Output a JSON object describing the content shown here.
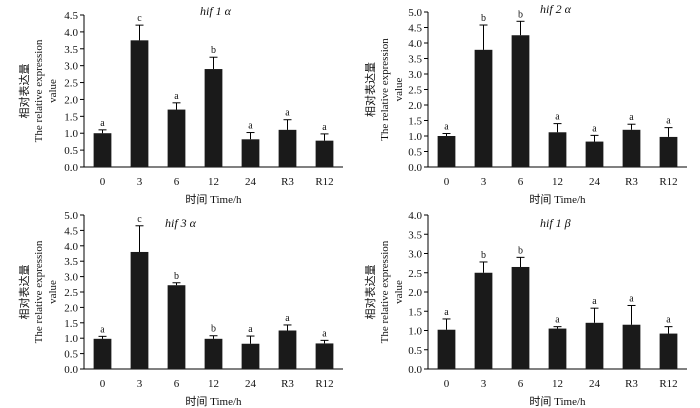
{
  "chart_data": [
    {
      "type": "bar",
      "title": "hif 1 α",
      "categories": [
        "0",
        "3",
        "6",
        "12",
        "24",
        "R3",
        "R12"
      ],
      "values": [
        1.0,
        3.75,
        1.7,
        2.9,
        0.82,
        1.1,
        0.78
      ],
      "errors": [
        0.1,
        0.45,
        0.2,
        0.35,
        0.2,
        0.3,
        0.2
      ],
      "sig_labels": [
        "a",
        "c",
        "a",
        "b",
        "a",
        "a",
        "a"
      ],
      "ylim": [
        0,
        4.5
      ],
      "yticks": [
        "0.0",
        "0.5",
        "1.0",
        "1.5",
        "2.0",
        "2.5",
        "3.0",
        "3.5",
        "4.0",
        "4.5"
      ],
      "ylabel_cn": "相对表达量",
      "ylabel_en1": "The relative expression",
      "ylabel_en2": "value",
      "xlabel": "时间 Time/h"
    },
    {
      "type": "bar",
      "title": "hif 2 α",
      "categories": [
        "0",
        "3",
        "6",
        "12",
        "24",
        "R3",
        "R12"
      ],
      "values": [
        1.0,
        3.78,
        4.25,
        1.12,
        0.82,
        1.2,
        0.97
      ],
      "errors": [
        0.08,
        0.8,
        0.45,
        0.28,
        0.2,
        0.18,
        0.3
      ],
      "sig_labels": [
        "a",
        "b",
        "b",
        "a",
        "a",
        "a",
        "a"
      ],
      "ylim": [
        0,
        5.0
      ],
      "yticks": [
        "0.0",
        "0.5",
        "1.0",
        "1.5",
        "2.0",
        "2.5",
        "3.0",
        "3.5",
        "4.0",
        "4.5",
        "5.0"
      ],
      "ylabel_cn": "相对表达量",
      "ylabel_en1": "The relative expression",
      "ylabel_en2": "value",
      "xlabel": "时间 Time/h"
    },
    {
      "type": "bar",
      "title": "hif 3 α",
      "categories": [
        "0",
        "3",
        "6",
        "12",
        "24",
        "R3",
        "R12"
      ],
      "values": [
        0.98,
        3.8,
        2.72,
        0.98,
        0.82,
        1.25,
        0.83
      ],
      "errors": [
        0.08,
        0.85,
        0.08,
        0.1,
        0.25,
        0.18,
        0.1
      ],
      "sig_labels": [
        "a",
        "c",
        "b",
        "b",
        "a",
        "a",
        "a"
      ],
      "ylim": [
        0,
        5.0
      ],
      "yticks": [
        "0.0",
        "0.5",
        "1.0",
        "1.5",
        "2.0",
        "2.5",
        "3.0",
        "3.5",
        "4.0",
        "4.5",
        "5.0"
      ],
      "ylabel_cn": "相对表达量",
      "ylabel_en1": "The relative expression",
      "ylabel_en2": "value",
      "xlabel": "时间 Time/h"
    },
    {
      "type": "bar",
      "title": "hif 1 β",
      "categories": [
        "0",
        "3",
        "6",
        "12",
        "24",
        "R3",
        "R12"
      ],
      "values": [
        1.02,
        2.5,
        2.65,
        1.05,
        1.2,
        1.15,
        0.92
      ],
      "errors": [
        0.28,
        0.28,
        0.25,
        0.05,
        0.38,
        0.5,
        0.18
      ],
      "sig_labels": [
        "a",
        "b",
        "b",
        "a",
        "a",
        "a",
        "a"
      ],
      "ylim": [
        0,
        4.0
      ],
      "yticks": [
        "0.0",
        "0.5",
        "1.0",
        "1.5",
        "2.0",
        "2.5",
        "3.0",
        "3.5",
        "4.0"
      ],
      "ylabel_cn": "相对表达量",
      "ylabel_en1": "The relative expression",
      "ylabel_en2": "value",
      "xlabel": "时间 Time/h"
    }
  ]
}
